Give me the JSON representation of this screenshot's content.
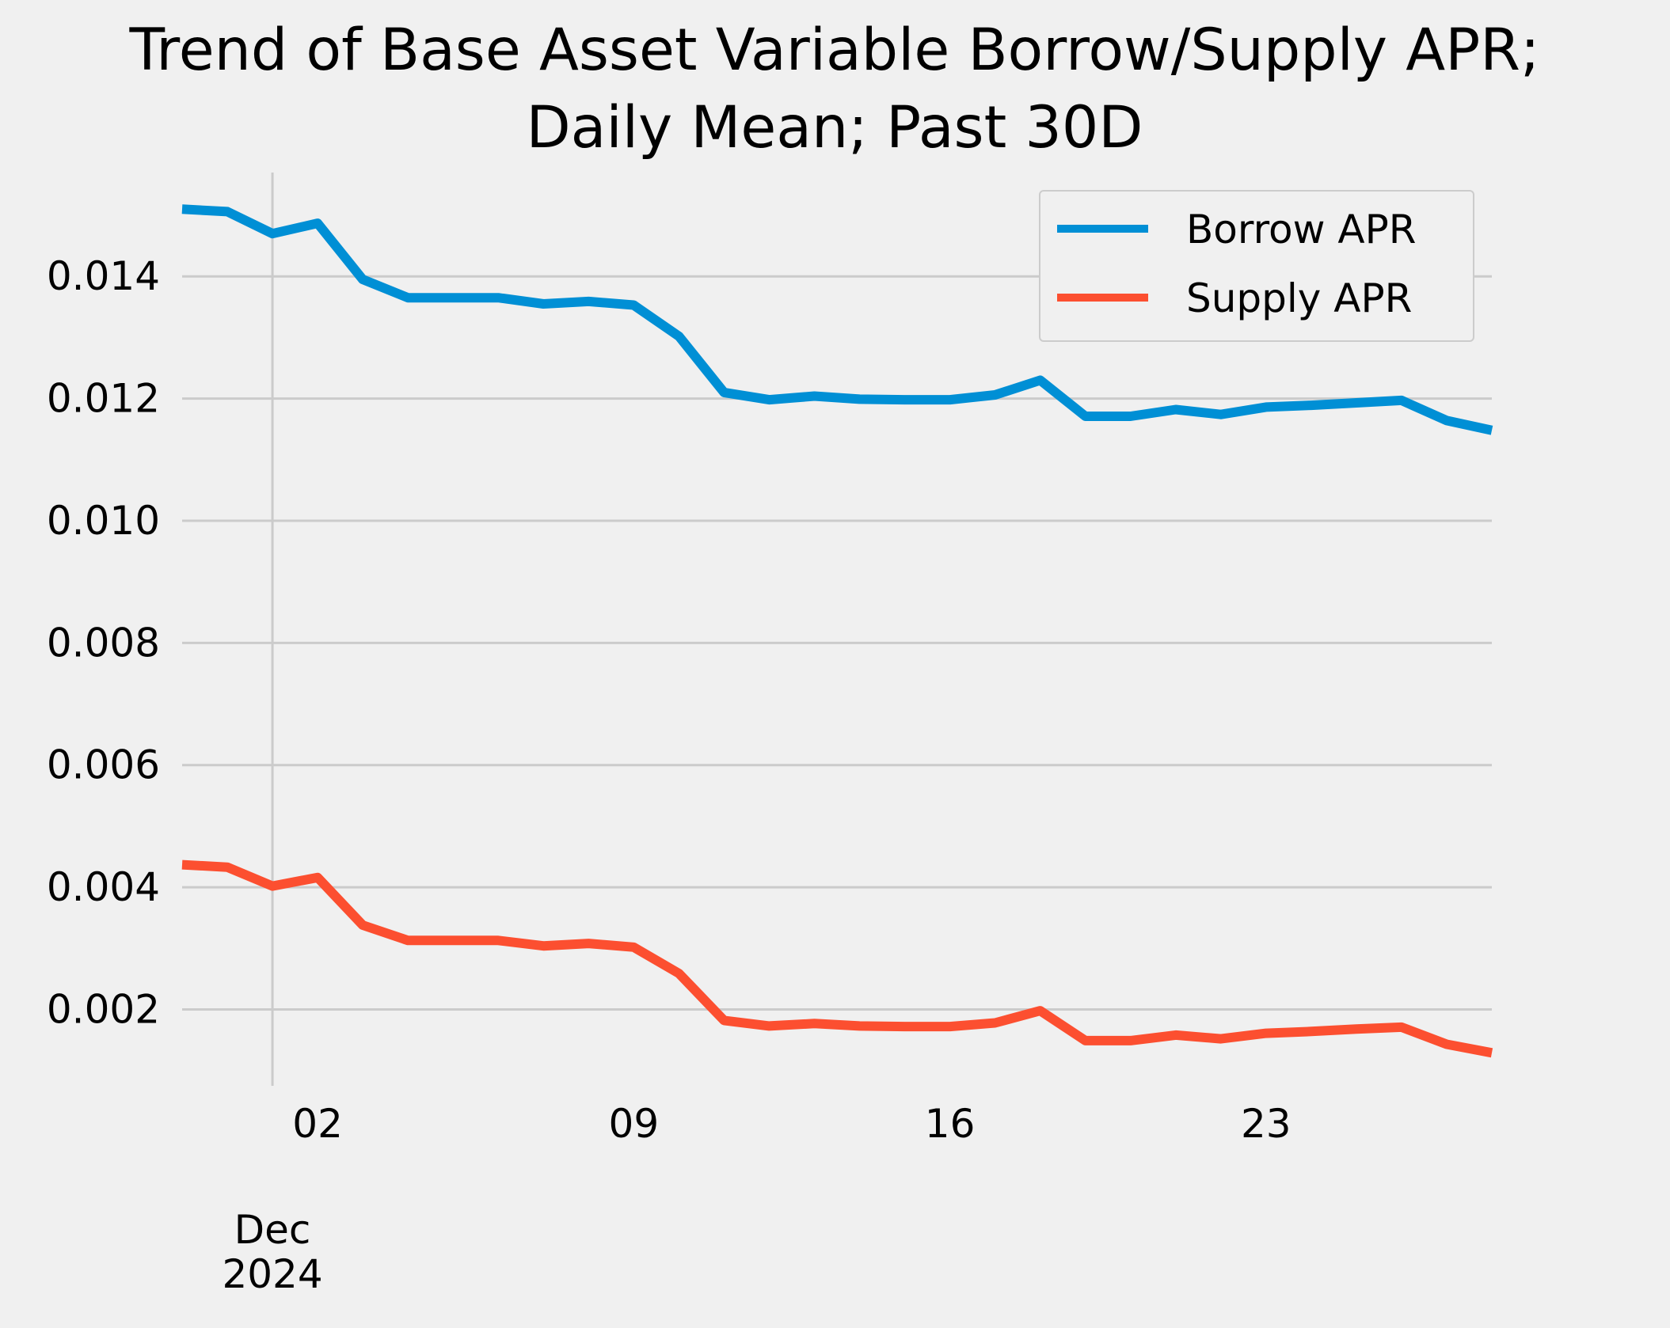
{
  "chart_data": {
    "type": "line",
    "title_lines": [
      "Trend of Base Asset Variable Borrow/Supply APR;",
      "Daily Mean; Past 30D"
    ],
    "xlabel": "",
    "ylabel": "",
    "x": [
      "2024-11-29",
      "2024-11-30",
      "2024-12-01",
      "2024-12-02",
      "2024-12-03",
      "2024-12-04",
      "2024-12-05",
      "2024-12-06",
      "2024-12-07",
      "2024-12-08",
      "2024-12-09",
      "2024-12-10",
      "2024-12-11",
      "2024-12-12",
      "2024-12-13",
      "2024-12-14",
      "2024-12-15",
      "2024-12-16",
      "2024-12-17",
      "2024-12-18",
      "2024-12-19",
      "2024-12-20",
      "2024-12-21",
      "2024-12-22",
      "2024-12-23",
      "2024-12-24",
      "2024-12-25",
      "2024-12-26",
      "2024-12-27",
      "2024-12-28"
    ],
    "series": [
      {
        "name": "Borrow APR",
        "color": "#008fd5",
        "values": [
          0.0151,
          0.01506,
          0.0147,
          0.01487,
          0.01395,
          0.01365,
          0.01365,
          0.01365,
          0.01355,
          0.01359,
          0.01353,
          0.01302,
          0.0121,
          0.01198,
          0.01204,
          0.01199,
          0.01198,
          0.01198,
          0.01206,
          0.0123,
          0.01171,
          0.01171,
          0.01182,
          0.01174,
          0.01186,
          0.01189,
          0.01193,
          0.01197,
          0.01164,
          0.01148
        ]
      },
      {
        "name": "Supply APR",
        "color": "#fc4f30",
        "values": [
          0.00437,
          0.00433,
          0.00402,
          0.00416,
          0.00338,
          0.00313,
          0.00313,
          0.00313,
          0.00304,
          0.00308,
          0.00302,
          0.00259,
          0.00182,
          0.00173,
          0.00177,
          0.00173,
          0.00172,
          0.00172,
          0.00178,
          0.00198,
          0.00149,
          0.00149,
          0.00158,
          0.00152,
          0.00161,
          0.00164,
          0.00168,
          0.00171,
          0.00143,
          0.00129
        ]
      }
    ],
    "yticks": [
      "0.002",
      "0.004",
      "0.006",
      "0.008",
      "0.010",
      "0.012",
      "0.014"
    ],
    "ytick_values": [
      0.002,
      0.004,
      0.006,
      0.008,
      0.01,
      0.012,
      0.014
    ],
    "ylim": [
      0.00075,
      0.0157
    ],
    "xticks": [
      {
        "date": "2024-12-02",
        "label": "02"
      },
      {
        "date": "2024-12-09",
        "label": "09"
      },
      {
        "date": "2024-12-16",
        "label": "16"
      },
      {
        "date": "2024-12-23",
        "label": "23"
      }
    ],
    "xlim": [
      "2024-11-29",
      "2024-12-28"
    ],
    "major_x_label": {
      "date": "2024-12-01",
      "lines": [
        "Dec",
        "2024"
      ]
    },
    "grid": true,
    "legend_position": "top-right"
  }
}
